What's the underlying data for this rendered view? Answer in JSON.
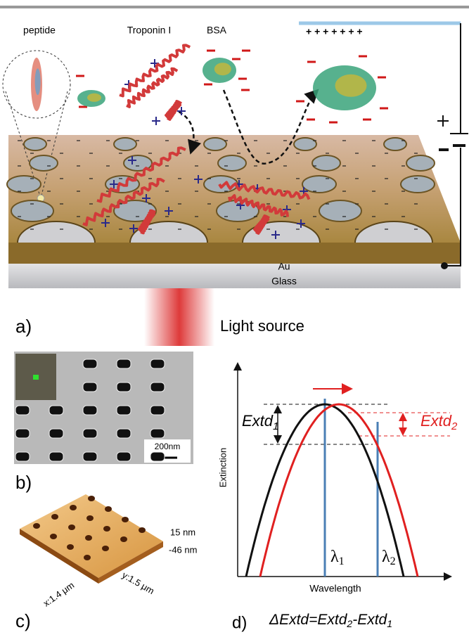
{
  "panel_a": {
    "label": "a)",
    "molecules": [
      "peptide",
      "Troponin I",
      "BSA"
    ],
    "electrode_charges": "+ + + + + + +",
    "layers": [
      "Au",
      "Glass"
    ],
    "light": "Light source"
  },
  "panel_b": {
    "label": "b)",
    "scale_bar": "200nm"
  },
  "panel_c": {
    "label": "c)",
    "z_max": "15 nm",
    "z_min": "-46 nm",
    "x_size": "x:1.4 μm",
    "y_size": "y:1.5 μm"
  },
  "panel_d": {
    "label": "d)",
    "y_axis": "Extinction",
    "x_axis": "Wavelength",
    "extd1": [
      "Extd",
      "1"
    ],
    "extd2": [
      "Extd",
      "2"
    ],
    "lambda1": [
      "λ",
      "1"
    ],
    "lambda2": [
      "λ",
      "2"
    ],
    "equation": [
      "ΔExtd=Extd",
      "2",
      "-Extd",
      "1"
    ]
  }
}
